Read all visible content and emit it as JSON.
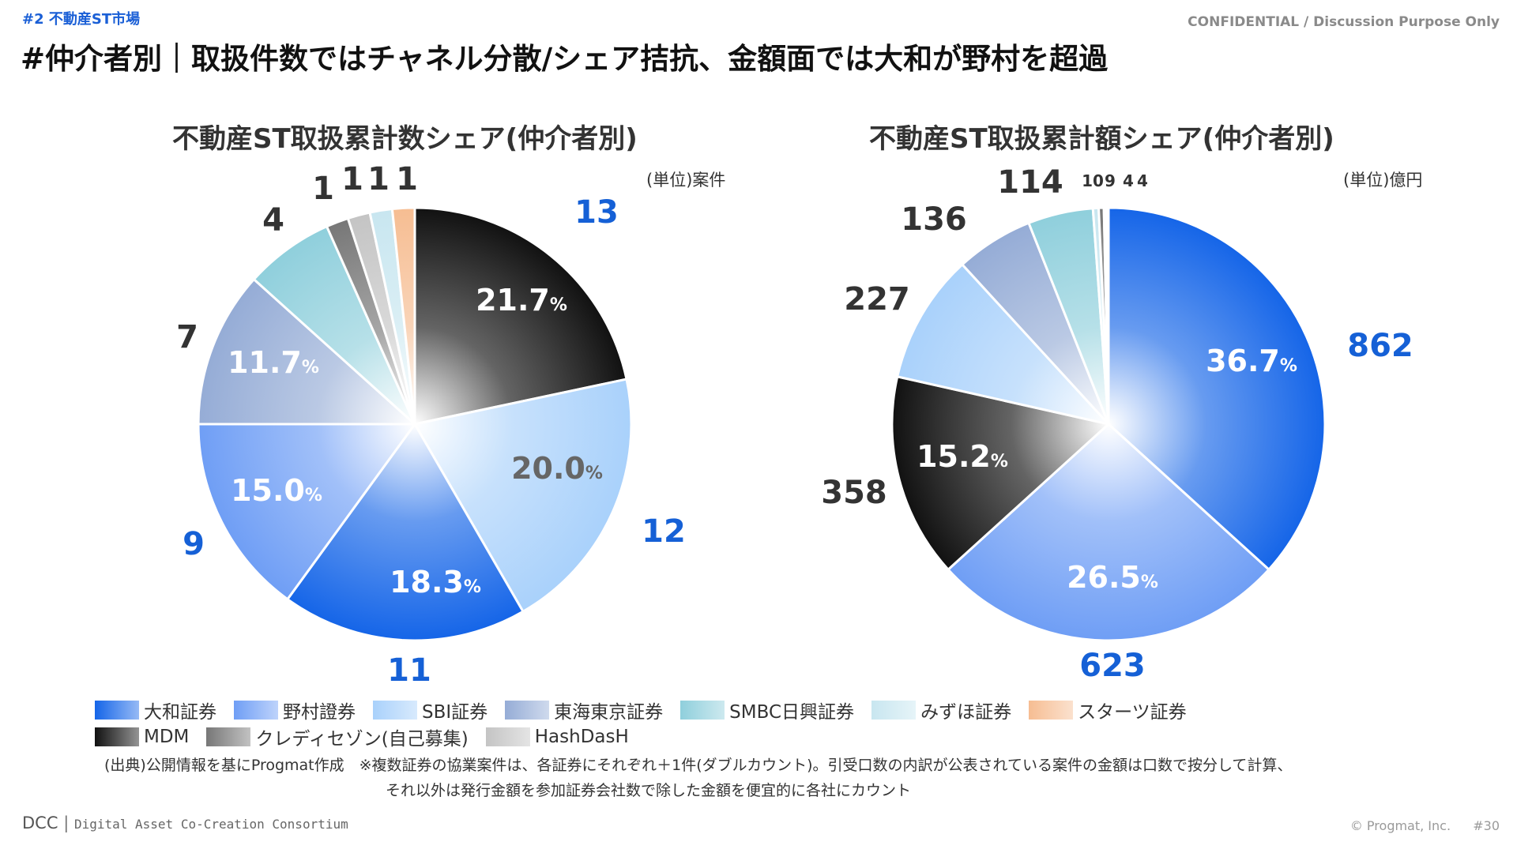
{
  "header": {
    "section_tag": "#2 不動産ST市場",
    "confidential": "CONFIDENTIAL / Discussion Purpose Only",
    "title": "#仲介者別｜取扱件数ではチャネル分散/シェア拮抗、金額面では大和が野村を超過"
  },
  "colors": {
    "daiwa": "#1565e8",
    "nomura": "#6f9ef5",
    "sbi": "#a9d1fb",
    "tokai": "#95acd6",
    "smbc": "#8fcfdc",
    "mizuho": "#c8e6f0",
    "starts": "#f6bd92",
    "mdm": "#111111",
    "credisaison": "#777777",
    "hashdash": "#c4c4c4"
  },
  "chart_data": [
    {
      "type": "pie",
      "title": "不動産ST取扱累計数シェア(仲介者別)",
      "unit": "(単位)案件",
      "slices": [
        {
          "name": "MDM",
          "value": 13,
          "pct": "21.7",
          "color_key": "mdm"
        },
        {
          "name": "SBI証券",
          "value": 12,
          "pct": "20.0",
          "color_key": "sbi"
        },
        {
          "name": "大和証券",
          "value": 11,
          "pct": "18.3",
          "color_key": "daiwa"
        },
        {
          "name": "野村證券",
          "value": 9,
          "pct": "15.0",
          "color_key": "nomura"
        },
        {
          "name": "東海東京証券",
          "value": 7,
          "pct": "11.7",
          "color_key": "tokai"
        },
        {
          "name": "SMBC日興証券",
          "value": 4,
          "pct": "",
          "color_key": "smbc"
        },
        {
          "name": "クレディセゾン(自己募集)",
          "value": 1,
          "pct": "",
          "color_key": "credisaison"
        },
        {
          "name": "HashDasH",
          "value": 1,
          "pct": "",
          "color_key": "hashdash"
        },
        {
          "name": "みずほ証券",
          "value": 1,
          "pct": "",
          "color_key": "mizuho"
        },
        {
          "name": "スターツ証券",
          "value": 1,
          "pct": "",
          "color_key": "starts"
        }
      ]
    },
    {
      "type": "pie",
      "title": "不動産ST取扱累計額シェア(仲介者別)",
      "unit": "(単位)億円",
      "slices": [
        {
          "name": "大和証券",
          "value": 862,
          "pct": "36.7",
          "color_key": "daiwa"
        },
        {
          "name": "野村證券",
          "value": 623,
          "pct": "26.5",
          "color_key": "nomura"
        },
        {
          "name": "MDM",
          "value": 358,
          "pct": "15.2",
          "color_key": "mdm"
        },
        {
          "name": "SBI証券",
          "value": 227,
          "pct": "",
          "color_key": "sbi"
        },
        {
          "name": "東海東京証券",
          "value": 136,
          "pct": "",
          "color_key": "tokai"
        },
        {
          "name": "SMBC日興証券",
          "value": 114,
          "pct": "",
          "color_key": "smbc"
        },
        {
          "name": "みずほ証券",
          "value": 10,
          "pct": "",
          "color_key": "mizuho"
        },
        {
          "name": "クレディセゾン(自己募集)",
          "value": 9,
          "pct": "",
          "color_key": "credisaison"
        },
        {
          "name": "HashDasH",
          "value": 4,
          "pct": "",
          "color_key": "hashdash"
        },
        {
          "name": "スターツ証券",
          "value": 4,
          "pct": "",
          "color_key": "starts"
        }
      ]
    }
  ],
  "legend": {
    "row1": [
      {
        "label": "大和証券",
        "color_key": "daiwa"
      },
      {
        "label": "野村證券",
        "color_key": "nomura"
      },
      {
        "label": "SBI証券",
        "color_key": "sbi"
      },
      {
        "label": "東海東京証券",
        "color_key": "tokai"
      },
      {
        "label": "SMBC日興証券",
        "color_key": "smbc"
      },
      {
        "label": "みずほ証券",
        "color_key": "mizuho"
      },
      {
        "label": "スターツ証券",
        "color_key": "starts"
      }
    ],
    "row2": [
      {
        "label": "MDM",
        "color_key": "mdm"
      },
      {
        "label": "クレディセゾン(自己募集)",
        "color_key": "credisaison"
      },
      {
        "label": "HashDasH",
        "color_key": "hashdash"
      }
    ]
  },
  "notes": {
    "line1": "(出典)公開情報を基にProgmat作成　※複数証券の協業案件は、各証券にそれぞれ＋1件(ダブルカウント)。引受口数の内訳が公表されている案件の金額は口数で按分して計算、",
    "line2": "それ以外は発行金額を参加証券会社数で除した金額を便宜的に各社にカウント"
  },
  "footer": {
    "logo": "DCC",
    "logo_sub": "Digital Asset Co-Creation Consortium",
    "copyright": "© Progmat, Inc.",
    "page": "#30"
  }
}
